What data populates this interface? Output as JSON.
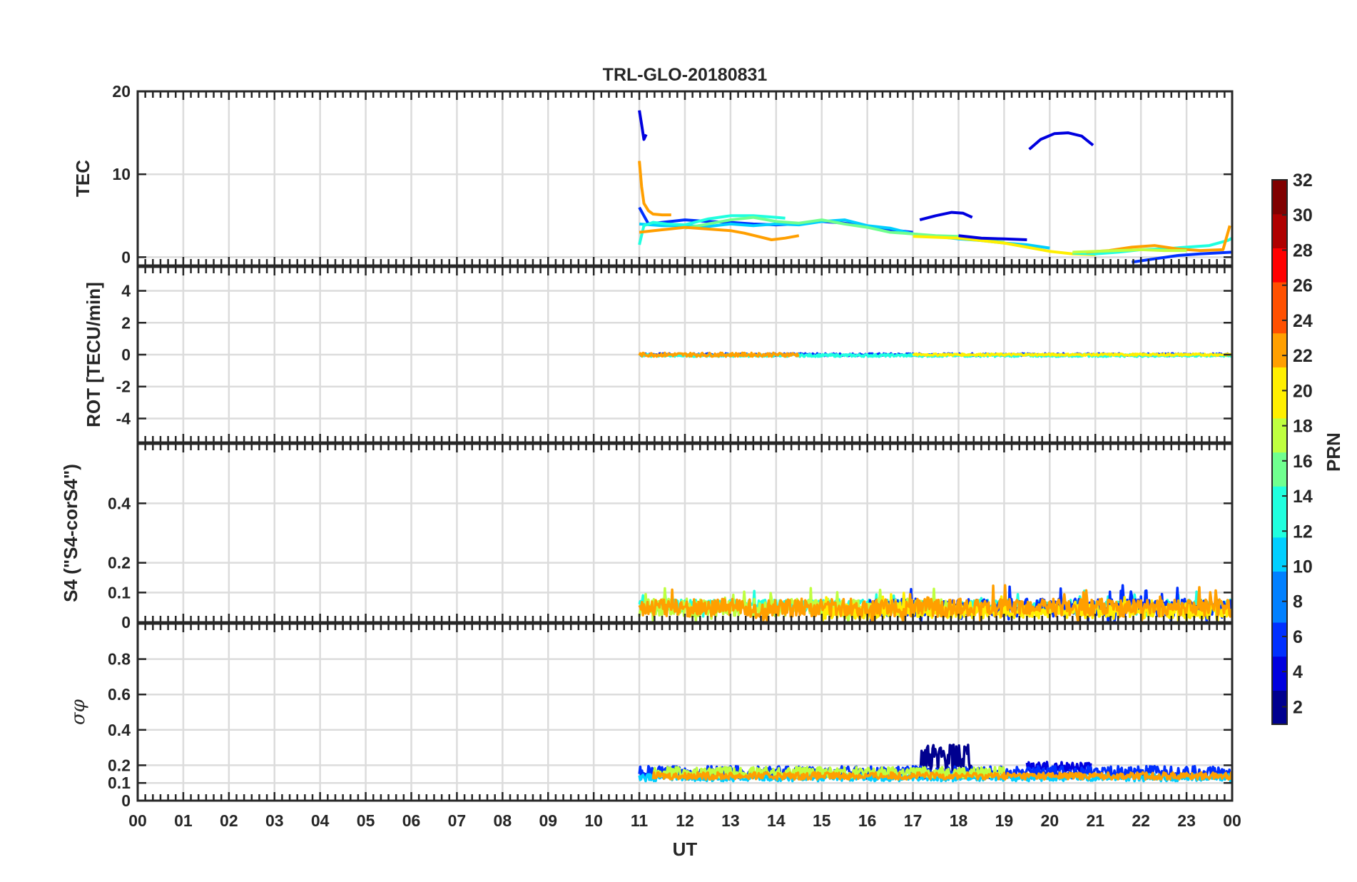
{
  "chart_data": {
    "type": "line",
    "title": "TRL-GLO-20180831",
    "xlabel": "UT",
    "x_ticks": [
      "00",
      "01",
      "02",
      "03",
      "04",
      "05",
      "06",
      "07",
      "08",
      "09",
      "10",
      "11",
      "12",
      "13",
      "14",
      "15",
      "16",
      "17",
      "18",
      "19",
      "20",
      "21",
      "22",
      "23",
      "00"
    ],
    "xlim_hours": [
      0,
      24
    ],
    "grid": true,
    "colorbar": {
      "label": "PRN",
      "range": [
        1,
        32
      ],
      "ticks": [
        "2",
        "4",
        "6",
        "8",
        "10",
        "12",
        "14",
        "16",
        "18",
        "20",
        "22",
        "24",
        "26",
        "28",
        "30",
        "32"
      ],
      "colormap": "jet",
      "colors": [
        "#00008f",
        "#0000df",
        "#0030ff",
        "#0080ff",
        "#00cfff",
        "#20ffdf",
        "#70ff8f",
        "#bfff40",
        "#ffef00",
        "#ff9f00",
        "#ff5000",
        "#ff0000",
        "#af0000",
        "#800000"
      ]
    },
    "panels": [
      {
        "key": "tec",
        "ylabel": "TEC",
        "ylim": [
          -1,
          20
        ],
        "yticks": [
          {
            "v": 0,
            "label": "0"
          },
          {
            "v": 10,
            "label": "10"
          },
          {
            "v": 20,
            "label": "20"
          }
        ],
        "series": [
          {
            "prn": 3,
            "x": [
              11.0,
              11.05,
              11.1,
              11.15
            ],
            "y": [
              17.7,
              16,
              14.2,
              14.8
            ]
          },
          {
            "prn": 22,
            "x": [
              11.0,
              11.05,
              11.1,
              11.2,
              11.3,
              11.5,
              11.7
            ],
            "y": [
              11.6,
              8.5,
              6.5,
              5.6,
              5.2,
              5.1,
              5.1
            ]
          },
          {
            "prn": 3,
            "x": [
              19.55,
              19.8,
              20.1,
              20.4,
              20.7,
              20.95
            ],
            "y": [
              13,
              14.2,
              14.9,
              15.0,
              14.6,
              13.5
            ]
          },
          {
            "prn": 3,
            "x": [
              17.15,
              17.5,
              17.85,
              18.1,
              18.3
            ],
            "y": [
              4.5,
              5.0,
              5.4,
              5.3,
              4.8
            ]
          },
          {
            "prn": 6,
            "x": [
              11.0,
              11.2,
              11.5,
              12.0,
              12.5,
              13.0,
              13.5,
              14.0,
              14.5,
              15.0,
              15.5,
              16.0,
              16.5,
              17.0
            ],
            "y": [
              6,
              4,
              4.2,
              4.5,
              4.3,
              4.2,
              4.0,
              3.9,
              4.0,
              4.3,
              4.1,
              3.7,
              3.3,
              3.0
            ]
          },
          {
            "prn": 10,
            "x": [
              11.0,
              11.5,
              12.0,
              12.5,
              13.0,
              13.5,
              14.0,
              14.5,
              15.0,
              15.5,
              16.0,
              16.5,
              17.0,
              17.5,
              18.0,
              18.5,
              19.0,
              19.5,
              20.0
            ],
            "y": [
              4.0,
              3.8,
              3.8,
              3.7,
              4.0,
              3.8,
              4.0,
              3.9,
              4.3,
              4.5,
              3.8,
              3.5,
              2.8,
              2.5,
              2.2,
              2.0,
              1.7,
              1.5,
              1.1
            ]
          },
          {
            "prn": 14,
            "x": [
              11.0,
              11.1,
              11.3,
              11.6,
              12.0,
              12.5,
              13.0,
              13.5,
              14.0,
              14.2
            ],
            "y": [
              1.5,
              3.8,
              4.2,
              4.0,
              3.9,
              4.6,
              5.0,
              5.0,
              4.8,
              4.7
            ]
          },
          {
            "prn": 16,
            "x": [
              12.0,
              12.5,
              13.0,
              13.5,
              14.0,
              14.5,
              15.0,
              15.5,
              16.0,
              16.5,
              17.0,
              17.5,
              18.0,
              18.5,
              19.0
            ],
            "y": [
              3.5,
              4.0,
              4.5,
              4.8,
              4.3,
              4.1,
              4.5,
              4.0,
              3.6,
              3.0,
              2.8,
              2.6,
              2.5,
              2.1,
              1.8
            ]
          },
          {
            "prn": 23,
            "x": [
              11.0,
              11.5,
              12.0,
              12.5,
              13.0,
              13.3,
              13.6,
              13.9,
              14.2,
              14.5
            ],
            "y": [
              3.0,
              3.3,
              3.6,
              3.4,
              3.2,
              2.9,
              2.5,
              2.1,
              2.3,
              2.6
            ]
          },
          {
            "prn": 20,
            "x": [
              17.0,
              17.5,
              18.0,
              18.5,
              19.0,
              19.5,
              20.0,
              20.5,
              21.0
            ],
            "y": [
              2.5,
              2.4,
              2.3,
              2.0,
              1.7,
              1.2,
              0.7,
              0.4,
              0.3
            ]
          },
          {
            "prn": 4,
            "x": [
              18.0,
              18.5,
              19.0,
              19.5
            ],
            "y": [
              2.6,
              2.3,
              2.2,
              2.1
            ]
          },
          {
            "prn": 13,
            "x": [
              20.5,
              21.0,
              21.5,
              22.0,
              22.5,
              23.0,
              23.5,
              23.9,
              24.0
            ],
            "y": [
              0.5,
              0.4,
              0.6,
              0.9,
              1.0,
              1.2,
              1.4,
              2.0,
              2.3
            ]
          },
          {
            "prn": 22,
            "x": [
              20.8,
              21.3,
              21.8,
              22.3,
              22.8,
              23.3,
              23.8,
              23.95
            ],
            "y": [
              0.6,
              0.8,
              1.2,
              1.4,
              1.0,
              0.8,
              0.9,
              3.8
            ]
          },
          {
            "prn": 18,
            "x": [
              20.5,
              21.0,
              21.5,
              22.0,
              22.5,
              23.0
            ],
            "y": [
              0.6,
              0.7,
              0.8,
              0.9,
              0.8,
              0.8
            ]
          },
          {
            "prn": 6,
            "x": [
              21.8,
              22.3,
              22.8,
              23.3,
              24.0
            ],
            "y": [
              -0.6,
              -0.2,
              0.2,
              0.4,
              0.6
            ]
          }
        ]
      },
      {
        "key": "rot",
        "ylabel": "ROT [TECU/min]",
        "ylim": [
          -5.5,
          5.5
        ],
        "yticks": [
          {
            "v": 4,
            "label": "4"
          },
          {
            "v": 2,
            "label": "2"
          },
          {
            "v": 0,
            "label": "0"
          },
          {
            "v": -2,
            "label": "-2"
          },
          {
            "v": -4,
            "label": "-4"
          }
        ],
        "series": [
          {
            "prn": 6,
            "x_range": [
              11.0,
              24.0
            ],
            "base": 0.0,
            "amp": 0.08
          },
          {
            "prn": 14,
            "x_range": [
              11.0,
              24.0
            ],
            "base": -0.05,
            "amp": 0.08
          },
          {
            "prn": 20,
            "x_range": [
              17.0,
              24.0
            ],
            "base": 0.0,
            "amp": 0.06
          },
          {
            "prn": 23,
            "x_range": [
              11.0,
              14.5
            ],
            "base": 0.0,
            "amp": 0.12
          }
        ]
      },
      {
        "key": "s4",
        "ylabel": "S4 (\"S4-corS4\")",
        "ylim": [
          0,
          0.6
        ],
        "yticks": [
          {
            "v": 0.4,
            "label": "0.4"
          },
          {
            "v": 0.2,
            "label": "0.2"
          },
          {
            "v": 0.1,
            "label": "0.1"
          },
          {
            "v": 0,
            "label": "0"
          }
        ],
        "series": [
          {
            "prn": 14,
            "x_range": [
              11.0,
              24.0
            ],
            "base": 0.05,
            "amp": 0.04
          },
          {
            "prn": 6,
            "x_range": [
              16.0,
              24.0
            ],
            "base": 0.04,
            "amp": 0.06
          },
          {
            "prn": 17,
            "x_range": [
              11.0,
              18.0
            ],
            "base": 0.04,
            "amp": 0.06
          },
          {
            "prn": 20,
            "x_range": [
              15.0,
              24.0
            ],
            "base": 0.03,
            "amp": 0.05
          },
          {
            "prn": 23,
            "x_range": [
              11.0,
              24.0
            ],
            "base": 0.04,
            "amp": 0.06
          }
        ]
      },
      {
        "key": "sigma",
        "ylabel": "σφ",
        "ylim": [
          0,
          1
        ],
        "yticks": [
          {
            "v": 0.8,
            "label": "0.8"
          },
          {
            "v": 0.6,
            "label": "0.6"
          },
          {
            "v": 0.4,
            "label": "0.4"
          },
          {
            "v": 0.2,
            "label": "0.2"
          },
          {
            "v": 0.1,
            "label": "0.1"
          },
          {
            "v": 0,
            "label": "0"
          }
        ],
        "series": [
          {
            "prn": 2,
            "x_range": [
              17.15,
              18.3
            ],
            "base": 0.23,
            "amp": 0.09
          },
          {
            "prn": 3,
            "x_range": [
              19.5,
              20.9
            ],
            "base": 0.19,
            "amp": 0.03
          },
          {
            "prn": 6,
            "x_range": [
              11.0,
              24.0
            ],
            "base": 0.16,
            "amp": 0.035
          },
          {
            "prn": 10,
            "x_range": [
              11.0,
              24.0
            ],
            "base": 0.13,
            "amp": 0.02
          },
          {
            "prn": 17,
            "x_range": [
              11.3,
              19.0
            ],
            "base": 0.16,
            "amp": 0.03
          },
          {
            "prn": 23,
            "x_range": [
              11.3,
              24.0
            ],
            "base": 0.14,
            "amp": 0.02
          }
        ]
      }
    ]
  }
}
